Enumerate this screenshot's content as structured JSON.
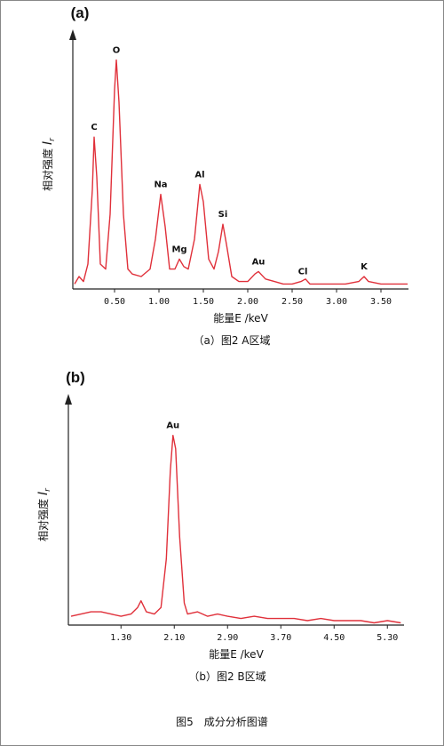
{
  "chart_data": [
    {
      "type": "line",
      "panel": "(a)",
      "y_label": "相对强度 ",
      "y_symbol": "I",
      "y_subscript": "r",
      "x_label": "能量E /keV",
      "caption": "（a）图2 A区域",
      "xlim": [
        0.03,
        3.81
      ],
      "ylim": [
        0,
        100
      ],
      "xticks": [
        {
          "value": 0.5,
          "label": "0.50"
        },
        {
          "value": 1.0,
          "label": "1.00"
        },
        {
          "value": 1.5,
          "label": "1.50"
        },
        {
          "value": 2.0,
          "label": "2.00"
        },
        {
          "value": 2.5,
          "label": "2.50"
        },
        {
          "value": 3.0,
          "label": "3.00"
        },
        {
          "value": 3.5,
          "label": "3.50"
        }
      ],
      "color": "#e0303a",
      "x": [
        0.05,
        0.1,
        0.15,
        0.2,
        0.25,
        0.27,
        0.3,
        0.34,
        0.4,
        0.45,
        0.5,
        0.52,
        0.55,
        0.6,
        0.65,
        0.7,
        0.8,
        0.9,
        0.96,
        1.02,
        1.07,
        1.12,
        1.18,
        1.23,
        1.28,
        1.33,
        1.4,
        1.46,
        1.5,
        1.56,
        1.62,
        1.67,
        1.72,
        1.76,
        1.82,
        1.9,
        2.0,
        2.08,
        2.12,
        2.2,
        2.3,
        2.4,
        2.5,
        2.6,
        2.65,
        2.7,
        2.9,
        3.1,
        3.25,
        3.31,
        3.36,
        3.5,
        3.7,
        3.8
      ],
      "values": [
        2,
        5,
        3,
        10,
        40,
        61,
        45,
        10,
        8,
        30,
        80,
        92,
        75,
        30,
        8,
        6,
        5,
        8,
        20,
        38,
        25,
        8,
        8,
        12,
        9,
        8,
        20,
        42,
        35,
        12,
        8,
        15,
        26,
        18,
        5,
        3,
        3,
        6,
        7,
        4,
        3,
        2,
        2,
        3,
        4,
        2,
        2,
        2,
        3,
        5,
        3,
        2,
        2,
        2
      ],
      "peaks": [
        {
          "label": "C",
          "x": 0.27,
          "y": 61
        },
        {
          "label": "O",
          "x": 0.52,
          "y": 92
        },
        {
          "label": "Na",
          "x": 1.02,
          "y": 38
        },
        {
          "label": "Mg",
          "x": 1.23,
          "y": 12
        },
        {
          "label": "Al",
          "x": 1.46,
          "y": 42
        },
        {
          "label": "Si",
          "x": 1.72,
          "y": 26
        },
        {
          "label": "Au",
          "x": 2.12,
          "y": 7
        },
        {
          "label": "Cl",
          "x": 2.62,
          "y": 3
        },
        {
          "label": "K",
          "x": 3.31,
          "y": 5
        }
      ]
    },
    {
      "type": "line",
      "panel": "(b)",
      "y_label": "相对强度 ",
      "y_symbol": "I",
      "y_subscript": "r",
      "x_label": "能量E /keV",
      "caption": "（b）图2 B区域",
      "xlim": [
        0.51,
        5.55
      ],
      "ylim": [
        0,
        100
      ],
      "xticks": [
        {
          "value": 1.3,
          "label": "1.30"
        },
        {
          "value": 2.1,
          "label": "2.10"
        },
        {
          "value": 2.9,
          "label": "2.90"
        },
        {
          "value": 3.7,
          "label": "3.70"
        },
        {
          "value": 4.5,
          "label": "4.50"
        },
        {
          "value": 5.3,
          "label": "5.30"
        }
      ],
      "color": "#e0303a",
      "x": [
        0.55,
        0.7,
        0.85,
        1.0,
        1.15,
        1.3,
        1.45,
        1.55,
        1.6,
        1.68,
        1.8,
        1.9,
        1.98,
        2.04,
        2.08,
        2.12,
        2.18,
        2.25,
        2.3,
        2.45,
        2.6,
        2.75,
        2.9,
        3.1,
        3.3,
        3.5,
        3.7,
        3.9,
        4.1,
        4.3,
        4.5,
        4.7,
        4.9,
        5.1,
        5.3,
        5.5
      ],
      "values": [
        4,
        5,
        6,
        6,
        5,
        4,
        5,
        8,
        11,
        6,
        5,
        8,
        30,
        70,
        86,
        80,
        40,
        10,
        5,
        6,
        4,
        5,
        4,
        3,
        4,
        3,
        3,
        3,
        2,
        3,
        2,
        2,
        2,
        1,
        2,
        1
      ],
      "peaks": [
        {
          "label": "Au",
          "x": 2.08,
          "y": 86
        }
      ]
    }
  ],
  "figure_caption": "图5　成分分析图谱"
}
